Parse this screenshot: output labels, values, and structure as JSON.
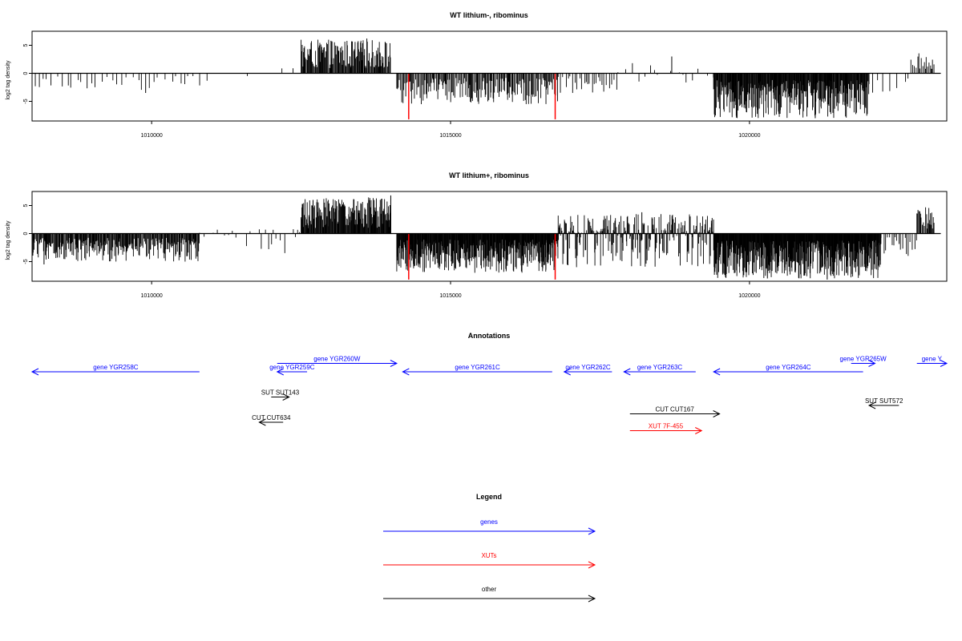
{
  "chart_data": [
    {
      "type": "bar",
      "title": "WT lithium-, ribominus",
      "ylabel": "log2 tag density",
      "xlim": [
        1008000,
        1023300
      ],
      "ylim": [
        -8.5,
        7.5
      ],
      "xticks": [
        1010000,
        1015000,
        1020000
      ],
      "xtick_labels": [
        "1010000",
        "1015000",
        "1020000"
      ],
      "yticks": [
        -5,
        0,
        5
      ],
      "ytick_labels": [
        "-5",
        "0",
        "5"
      ],
      "bar_color": "#000000",
      "marker_color": "#ff0000",
      "baseline_range": [
        1008000,
        1023200
      ],
      "red_markers": [
        {
          "x": 1014300,
          "y": -8.2
        },
        {
          "x": 1016750,
          "y": -8.2
        }
      ],
      "segments": [
        {
          "range": [
            1008000,
            1011000
          ],
          "min": -3.0,
          "max": 0,
          "density": 0.012
        },
        {
          "range": [
            1011600,
            1012500
          ],
          "min": -2.5,
          "max": 1.6,
          "density": 0.004
        },
        {
          "range": [
            1012500,
            1014000
          ],
          "min": 0,
          "max": 6.0,
          "density": 0.09
        },
        {
          "range": [
            1014100,
            1016800
          ],
          "min": -5.5,
          "max": 0,
          "density": 0.07
        },
        {
          "range": [
            1016800,
            1017800
          ],
          "min": -3.5,
          "max": 0,
          "density": 0.025
        },
        {
          "range": [
            1017800,
            1019400
          ],
          "min": -2.5,
          "max": 2.5,
          "density": 0.01
        },
        {
          "range": [
            1019400,
            1022000
          ],
          "min": -8.0,
          "max": 0,
          "density": 0.12
        },
        {
          "range": [
            1022000,
            1022700
          ],
          "min": -3.5,
          "max": 0,
          "density": 0.01
        },
        {
          "range": [
            1022700,
            1023100
          ],
          "min": 0,
          "max": 4.0,
          "density": 0.05
        }
      ],
      "peaks": [
        [
          1013600,
          6.2
        ],
        [
          1013000,
          5.8
        ],
        [
          1021100,
          -8.0
        ],
        [
          1018700,
          3.0
        ],
        [
          1009900,
          -3.5
        ]
      ]
    },
    {
      "type": "bar",
      "title": "WT lithium+, ribominus",
      "ylabel": "log2 tag density",
      "xlim": [
        1008000,
        1023300
      ],
      "ylim": [
        -8.5,
        7.5
      ],
      "xticks": [
        1010000,
        1015000,
        1020000
      ],
      "xtick_labels": [
        "1010000",
        "1015000",
        "1020000"
      ],
      "yticks": [
        -5,
        0,
        5
      ],
      "ytick_labels": [
        "-5",
        "0",
        "5"
      ],
      "bar_color": "#000000",
      "marker_color": "#ff0000",
      "baseline_range": [
        1008000,
        1023200
      ],
      "red_markers": [
        {
          "x": 1014300,
          "y": -8.2
        },
        {
          "x": 1016750,
          "y": -8.2
        }
      ],
      "segments": [
        {
          "range": [
            1008000,
            1010800
          ],
          "min": -5.0,
          "max": 0,
          "density": 0.09
        },
        {
          "range": [
            1010800,
            1011800
          ],
          "min": -3.0,
          "max": 0.8,
          "density": 0.008
        },
        {
          "range": [
            1011800,
            1012500
          ],
          "min": -3.5,
          "max": 1.5,
          "density": 0.02
        },
        {
          "range": [
            1012500,
            1014000
          ],
          "min": 0,
          "max": 6.5,
          "density": 0.12
        },
        {
          "range": [
            1014100,
            1016800
          ],
          "min": -7.0,
          "max": 0,
          "density": 0.15
        },
        {
          "range": [
            1016800,
            1019400
          ],
          "min": -6.0,
          "max": 3.5,
          "density": 0.1
        },
        {
          "range": [
            1019400,
            1022200
          ],
          "min": -8.0,
          "max": 0,
          "density": 0.16
        },
        {
          "range": [
            1022200,
            1022800
          ],
          "min": -4.0,
          "max": 0,
          "density": 0.03
        },
        {
          "range": [
            1022800,
            1023100
          ],
          "min": 0,
          "max": 5.0,
          "density": 0.07
        }
      ],
      "peaks": [
        [
          1014000,
          6.8
        ],
        [
          1012700,
          6.0
        ],
        [
          1021300,
          -8.2
        ],
        [
          1020300,
          -8.0
        ],
        [
          1018200,
          3.8
        ],
        [
          1008200,
          -5.5
        ]
      ]
    }
  ],
  "annotations": {
    "title": "Annotations",
    "xlim": [
      1008000,
      1023300
    ],
    "items": [
      {
        "label": "gene YGR258C",
        "start": 1010800,
        "end": 1008000,
        "row": 0,
        "color": "#0000ff"
      },
      {
        "label": "gene YGR259C",
        "start": 1012600,
        "end": 1012100,
        "row": 0,
        "color": "#0000ff"
      },
      {
        "label": "gene YGR260W",
        "start": 1012100,
        "end": 1014100,
        "row": -1,
        "color": "#0000ff"
      },
      {
        "label": "gene YGR261C",
        "start": 1016700,
        "end": 1014200,
        "row": 0,
        "color": "#0000ff"
      },
      {
        "label": "gene YGR262C",
        "start": 1017700,
        "end": 1016900,
        "row": 0,
        "color": "#0000ff"
      },
      {
        "label": "gene YGR263C",
        "start": 1019100,
        "end": 1017900,
        "row": 0,
        "color": "#0000ff"
      },
      {
        "label": "gene YGR264C",
        "start": 1021900,
        "end": 1019400,
        "row": 0,
        "color": "#0000ff"
      },
      {
        "label": "gene YGR265W",
        "start": 1021700,
        "end": 1022100,
        "row": -1,
        "color": "#0000ff"
      },
      {
        "label": "gene Y",
        "start": 1022800,
        "end": 1023300,
        "row": -1,
        "color": "#0000ff"
      },
      {
        "label": "SUT SUT143",
        "start": 1012000,
        "end": 1012300,
        "row": 3,
        "color": "#000000"
      },
      {
        "label": "CUT CUT634",
        "start": 1012200,
        "end": 1011800,
        "row": 6,
        "color": "#000000"
      },
      {
        "label": "CUT CUT167",
        "start": 1018000,
        "end": 1019500,
        "row": 5,
        "color": "#000000"
      },
      {
        "label": "SUT SUT572",
        "start": 1022500,
        "end": 1022000,
        "row": 4,
        "color": "#000000"
      },
      {
        "label": "XUT 7F-455",
        "start": 1018000,
        "end": 1019200,
        "row": 7,
        "color": "#ff0000"
      }
    ]
  },
  "legend": {
    "title": "Legend",
    "items": [
      {
        "label": "genes",
        "color": "#0000ff"
      },
      {
        "label": "XUTs",
        "color": "#ff0000"
      },
      {
        "label": "other",
        "color": "#000000"
      }
    ]
  }
}
